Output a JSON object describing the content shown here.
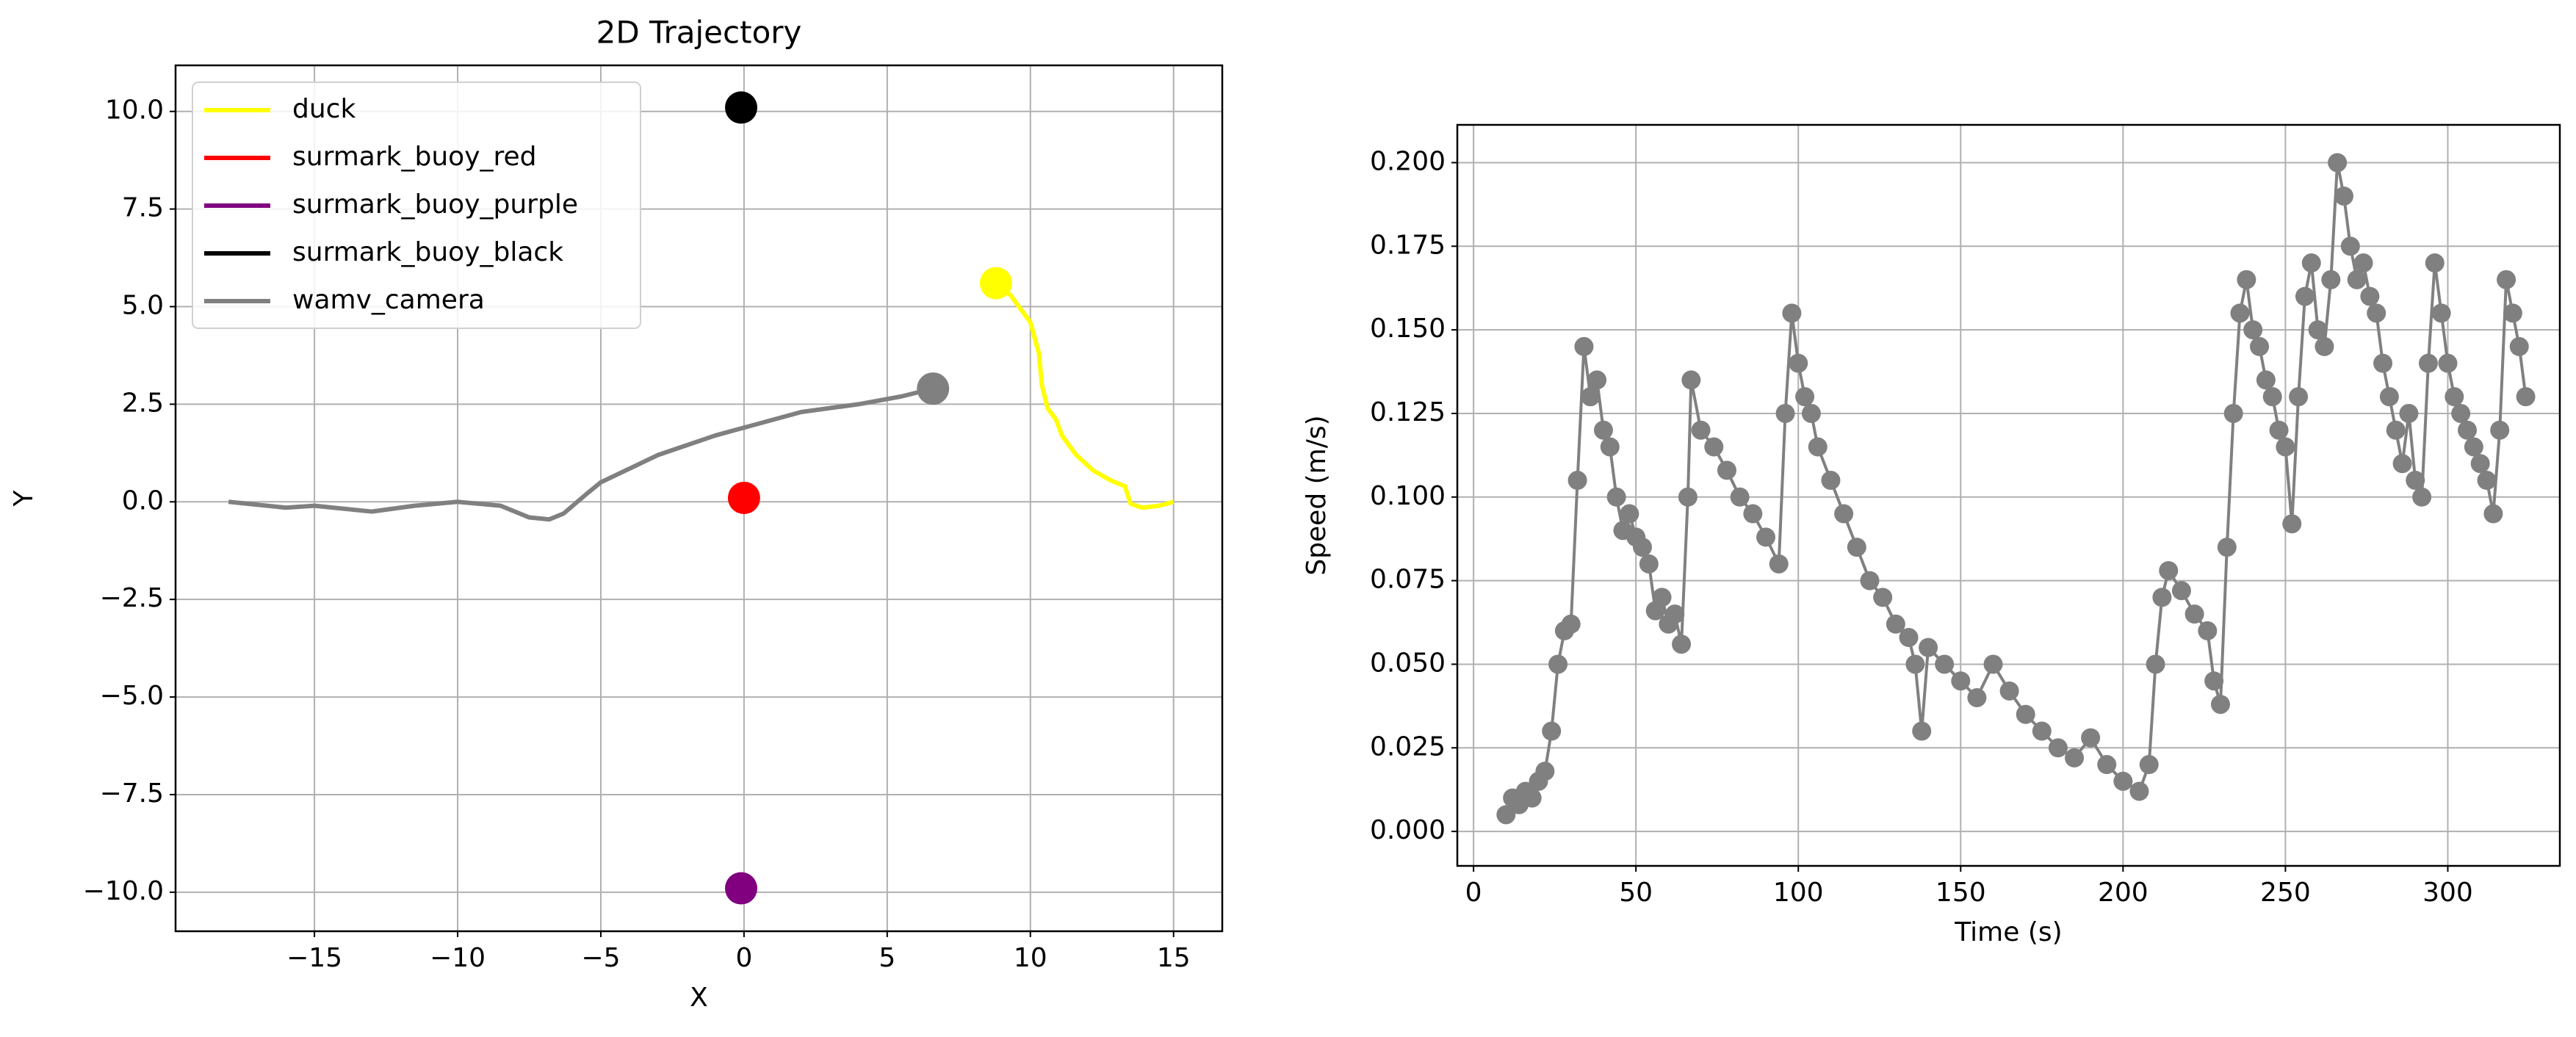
{
  "chart_data": [
    {
      "type": "line",
      "title": "2D Trajectory",
      "xlabel": "X",
      "ylabel": "Y",
      "xlim": [
        -19.85,
        16.7
      ],
      "ylim": [
        -11.0,
        11.18
      ],
      "xticks": [
        {
          "value": -15,
          "label": "−15"
        },
        {
          "value": -10,
          "label": "−10"
        },
        {
          "value": -5,
          "label": "−5"
        },
        0,
        5,
        10,
        15
      ],
      "yticks": [
        {
          "value": 10,
          "label": "10.0"
        },
        {
          "value": 7.5,
          "label": "7.5"
        },
        {
          "value": 5,
          "label": "5.0"
        },
        {
          "value": 2.5,
          "label": "2.5"
        },
        {
          "value": 0,
          "label": "0.0"
        },
        {
          "value": -2.5,
          "label": "−2.5"
        },
        {
          "value": -5,
          "label": "−5.0"
        },
        {
          "value": -7.5,
          "label": "−7.5"
        },
        {
          "value": -10,
          "label": "−10.0"
        }
      ],
      "grid": true,
      "legend": "upper left",
      "series": [
        {
          "name": "duck",
          "color": "#ffff00",
          "x": [
            15.0,
            14.5,
            13.9,
            13.5,
            13.3,
            12.8,
            12.2,
            11.6,
            11.1,
            10.9,
            10.6,
            10.4,
            10.3,
            10.0,
            9.7,
            9.3,
            8.8
          ],
          "values": [
            0.0,
            -0.1,
            -0.15,
            -0.05,
            0.4,
            0.55,
            0.8,
            1.2,
            1.7,
            2.1,
            2.4,
            3.0,
            3.8,
            4.6,
            4.9,
            5.3,
            5.6
          ]
        },
        {
          "name": "surmark_buoy_red",
          "color": "#ff0000",
          "x": [
            0.0
          ],
          "values": [
            0.1
          ]
        },
        {
          "name": "surmark_buoy_purple",
          "color": "#800080",
          "x": [
            -0.1
          ],
          "values": [
            -9.9
          ]
        },
        {
          "name": "surmark_buoy_black",
          "color": "#000000",
          "x": [
            -0.1
          ],
          "values": [
            10.1
          ]
        },
        {
          "name": "wamv_camera",
          "color": "#808080",
          "x": [
            -18.0,
            -16.0,
            -15.0,
            -13.0,
            -11.5,
            -10.0,
            -8.5,
            -7.5,
            -6.8,
            -6.3,
            -5.5,
            -5.0,
            -3.0,
            -1.0,
            0.0,
            2.0,
            4.0,
            5.5,
            6.6
          ],
          "values": [
            0.0,
            -0.15,
            -0.1,
            -0.25,
            -0.1,
            0.0,
            -0.1,
            -0.4,
            -0.45,
            -0.3,
            0.2,
            0.5,
            1.2,
            1.7,
            1.9,
            2.3,
            2.5,
            2.7,
            2.9
          ]
        }
      ]
    },
    {
      "type": "line",
      "markers": true,
      "xlabel": "Time (s)",
      "ylabel": "Speed (m/s)",
      "xlim": [
        -5,
        334.5
      ],
      "ylim": [
        -0.0103,
        0.2113
      ],
      "xticks": [
        0,
        50,
        100,
        150,
        200,
        250,
        300
      ],
      "yticks": [
        {
          "value": 0,
          "label": "0.000"
        },
        {
          "value": 0.025,
          "label": "0.025"
        },
        {
          "value": 0.05,
          "label": "0.050"
        },
        {
          "value": 0.075,
          "label": "0.075"
        },
        {
          "value": 0.1,
          "label": "0.100"
        },
        {
          "value": 0.125,
          "label": "0.125"
        },
        {
          "value": 0.15,
          "label": "0.150"
        },
        {
          "value": 0.175,
          "label": "0.175"
        },
        {
          "value": 0.2,
          "label": "0.200"
        }
      ],
      "grid": true,
      "color": "#808080",
      "x": [
        10,
        12,
        14,
        16,
        18,
        20,
        22,
        24,
        26,
        28,
        30,
        32,
        34,
        36,
        38,
        40,
        42,
        44,
        46,
        48,
        50,
        52,
        54,
        56,
        58,
        60,
        62,
        64,
        66,
        67,
        70,
        74,
        78,
        82,
        86,
        90,
        94,
        96,
        98,
        100,
        102,
        104,
        106,
        110,
        114,
        118,
        122,
        126,
        130,
        134,
        136,
        138,
        140,
        145,
        150,
        155,
        160,
        165,
        170,
        175,
        180,
        185,
        190,
        195,
        200,
        205,
        208,
        210,
        212,
        214,
        218,
        222,
        226,
        228,
        230,
        232,
        234,
        236,
        238,
        240,
        242,
        244,
        246,
        248,
        250,
        252,
        254,
        256,
        258,
        260,
        262,
        264,
        266,
        268,
        270,
        272,
        274,
        276,
        278,
        280,
        282,
        284,
        286,
        288,
        290,
        292,
        294,
        296,
        298,
        300,
        302,
        304,
        306,
        308,
        310,
        312,
        314,
        316,
        318,
        320,
        322,
        324
      ],
      "values": [
        0.005,
        0.01,
        0.008,
        0.012,
        0.01,
        0.015,
        0.018,
        0.03,
        0.05,
        0.06,
        0.062,
        0.105,
        0.145,
        0.13,
        0.135,
        0.12,
        0.115,
        0.1,
        0.09,
        0.095,
        0.088,
        0.085,
        0.08,
        0.066,
        0.07,
        0.062,
        0.065,
        0.056,
        0.1,
        0.135,
        0.12,
        0.115,
        0.108,
        0.1,
        0.095,
        0.088,
        0.08,
        0.125,
        0.155,
        0.14,
        0.13,
        0.125,
        0.115,
        0.105,
        0.095,
        0.085,
        0.075,
        0.07,
        0.062,
        0.058,
        0.05,
        0.03,
        0.055,
        0.05,
        0.045,
        0.04,
        0.05,
        0.042,
        0.035,
        0.03,
        0.025,
        0.022,
        0.028,
        0.02,
        0.015,
        0.012,
        0.02,
        0.05,
        0.07,
        0.078,
        0.072,
        0.065,
        0.06,
        0.045,
        0.038,
        0.085,
        0.125,
        0.155,
        0.165,
        0.15,
        0.145,
        0.135,
        0.13,
        0.12,
        0.115,
        0.092,
        0.13,
        0.16,
        0.17,
        0.15,
        0.145,
        0.165,
        0.2,
        0.19,
        0.175,
        0.165,
        0.17,
        0.16,
        0.155,
        0.14,
        0.13,
        0.12,
        0.11,
        0.125,
        0.105,
        0.1,
        0.14,
        0.17,
        0.155,
        0.14,
        0.13,
        0.125,
        0.12,
        0.115,
        0.11,
        0.105,
        0.095,
        0.12,
        0.165,
        0.155,
        0.145,
        0.13
      ]
    }
  ]
}
